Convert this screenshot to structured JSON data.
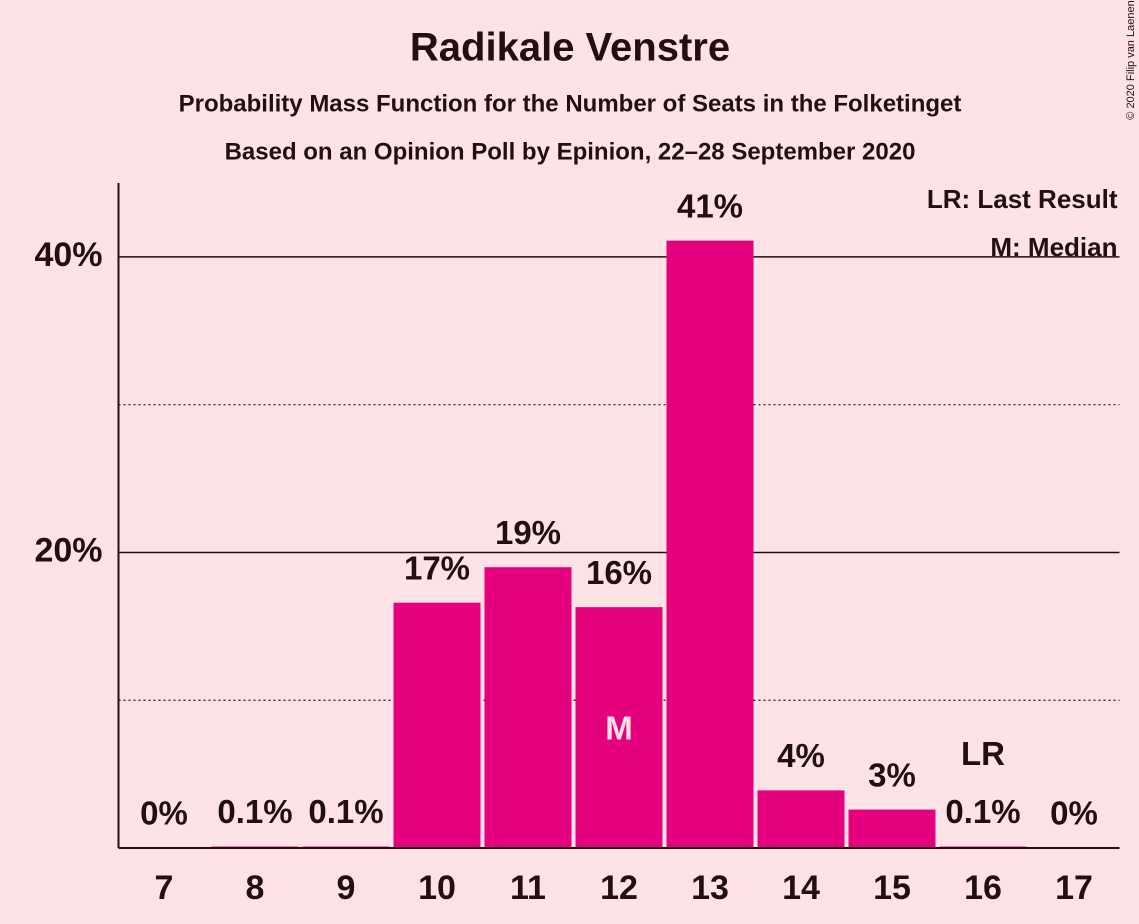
{
  "chart_data": {
    "type": "bar",
    "title": "Radikale Venstre",
    "subtitle": "Probability Mass Function for the Number of Seats in the Folketinget",
    "subtitle2": "Based on an Opinion Poll by Epinion, 22–28 September 2020",
    "categories": [
      "7",
      "8",
      "9",
      "10",
      "11",
      "12",
      "13",
      "14",
      "15",
      "16",
      "17"
    ],
    "values": [
      0,
      0.1,
      0.1,
      16.6,
      19.0,
      16.3,
      41.1,
      3.9,
      2.6,
      0.1,
      0
    ],
    "value_labels": [
      "0%",
      "0.1%",
      "0.1%",
      "17%",
      "19%",
      "16%",
      "41%",
      "4%",
      "3%",
      "0.1%",
      "0%"
    ],
    "color": "#e5007e",
    "ylim": [
      0,
      45
    ],
    "yticks": [
      {
        "value": 20,
        "label": "20%"
      },
      {
        "value": 40,
        "label": "40%"
      }
    ],
    "minor_grid": [
      10,
      30
    ],
    "grid": true,
    "median": {
      "label": "M",
      "category": "12"
    },
    "last_result": {
      "label": "LR",
      "category": "16"
    },
    "legend": [
      "LR: Last Result",
      "M: Median"
    ],
    "copyright": "© 2020 Filip van Laenen"
  }
}
